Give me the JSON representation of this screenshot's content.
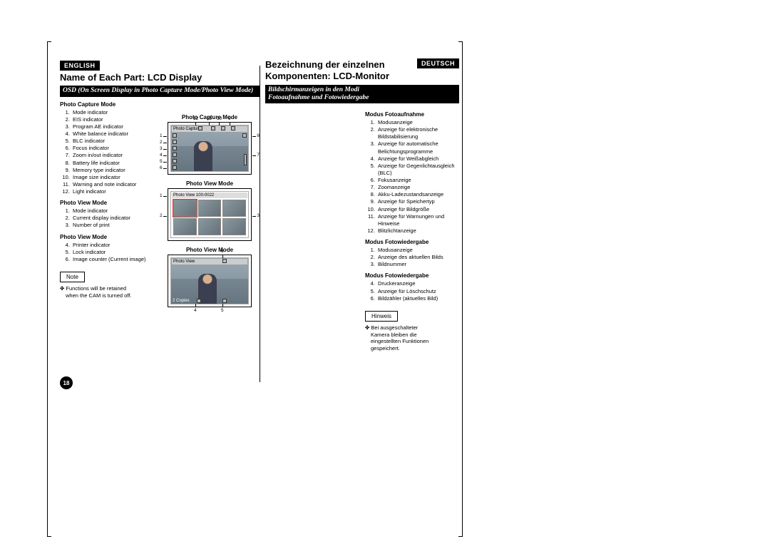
{
  "page_number": "18",
  "english": {
    "lang_label": "ENGLISH",
    "title": "Name of Each Part: LCD Display",
    "subheader": "OSD (On Screen Display in Photo Capture Mode/Photo View Mode)",
    "sections": [
      {
        "heading": "Photo Capture Mode",
        "start": 1,
        "items": [
          "Mode indicator",
          "EIS indicator",
          "Program AE indicator",
          "White balance indicator",
          "BLC indicator",
          "Focus indicator",
          "Zoom in/out indicator",
          "Battery life indicator",
          "Memory type indicator",
          "Image size indicator",
          "Warning and note indicator",
          "Light indicator"
        ]
      },
      {
        "heading": "Photo View Mode",
        "start": 1,
        "items": [
          "Mode indicator",
          "Current display indicator",
          "Number of print"
        ]
      },
      {
        "heading": "Photo View Mode",
        "start": 4,
        "items": [
          "Printer indicator",
          "Lock indicator",
          "Image counter (Current image)"
        ]
      }
    ],
    "note_label": "Note",
    "note_text": "✤  Functions will be retained when the CAM is turned off."
  },
  "deutsch": {
    "lang_label": "DEUTSCH",
    "title_l1": "Bezeichnung der einzelnen",
    "title_l2": "Komponenten: LCD-Monitor",
    "subheader_l1": "Bildschirmanzeigen in den Modi",
    "subheader_l2": "Fotoaufnahme und Fotowiedergabe",
    "sections": [
      {
        "heading": "Modus Fotoaufnahme",
        "start": 1,
        "items": [
          "Modusanzeige",
          "Anzeige für elektronische Bildstabilisierung",
          "Anzeige für automatische Belichtungsprogramme",
          "Anzeige für Weißabgleich",
          "Anzeige für Gegenlichtausgleich (BLC)",
          "Fokusanzeige",
          "Zoomanzeige",
          "Akku-Ladezustandsanzeige",
          "Anzeige für Speichertyp",
          "Anzeige für Bildgröße",
          "Anzeige für Warnungen und Hinweise",
          "Blitzlichtanzeige"
        ]
      },
      {
        "heading": "Modus Fotowiedergabe",
        "start": 1,
        "items": [
          "Modusanzeige",
          "Anzeige des aktuellen Bilds",
          "Bildnummer"
        ]
      },
      {
        "heading": "Modus Fotowiedergabe",
        "start": 4,
        "items": [
          "Druckeranzeige",
          "Anzeige für Löschschutz",
          "Bildzähler (aktuelles Bild)"
        ]
      }
    ],
    "note_label": "Hinweis",
    "note_text": "✤  Bei ausgeschalteter Kamera bleiben die eingestellten Funktionen gespeichert."
  },
  "diagrams": {
    "d1_title": "Photo Capture Mode",
    "d2_title": "Photo View Mode",
    "d3_title": "Photo View Mode",
    "osd_capture": "Photo Capture",
    "osd_view_grid": "Photo View 100-0022",
    "osd_view_single": "Photo View",
    "copies_label": "2 Copies"
  }
}
